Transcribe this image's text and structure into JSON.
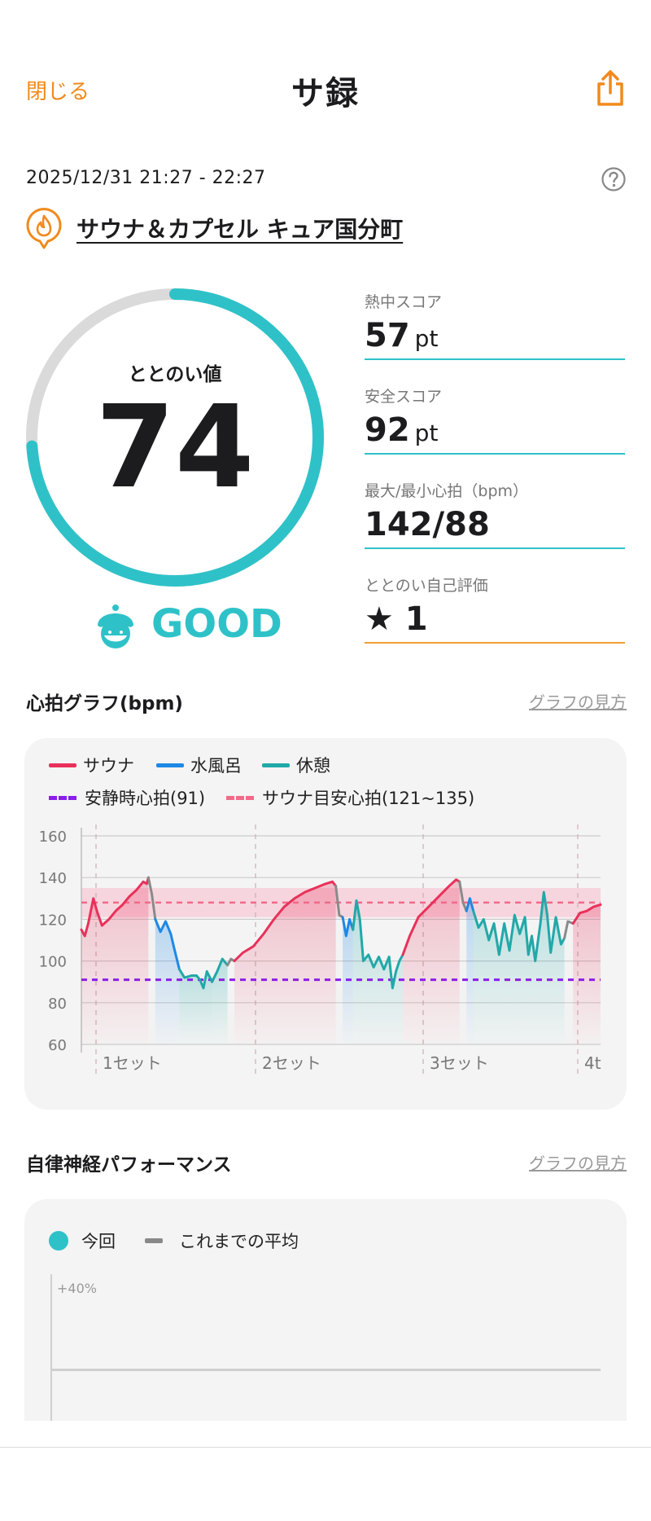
{
  "header": {
    "close_label": "閉じる",
    "title": "サ録",
    "share_icon": "share-icon"
  },
  "session": {
    "datetime": "2025/12/31 21:27 - 22:27",
    "location": "サウナ＆カプセル キュア国分町"
  },
  "gauge": {
    "label": "ととのい値",
    "value": "74",
    "max": 100,
    "rating": "GOOD"
  },
  "stats": [
    {
      "label": "熱中スコア",
      "value": "57",
      "unit": "pt"
    },
    {
      "label": "安全スコア",
      "value": "92",
      "unit": "pt"
    },
    {
      "label": "最大/最小心拍（bpm）",
      "value": "142/88",
      "unit": ""
    },
    {
      "label": "ととのい自己評価",
      "value": "★ 1",
      "unit": ""
    }
  ],
  "hr_section": {
    "title": "心拍グラフ(bpm)",
    "link": "グラフの見方"
  },
  "nerve_section": {
    "title": "自律神経パフォーマンス",
    "link": "グラフの見方",
    "legend_current": "今回",
    "legend_avg": "これまでの平均",
    "y_label": "+40%"
  },
  "colors": {
    "accent": "#f08a1c",
    "teal": "#2ec2c8",
    "sauna": "#e8315a",
    "cold": "#1e88e5",
    "rest": "#22a8a8",
    "resting_hr": "#8b1ee8",
    "target_hr": "#f06a8a"
  },
  "chart_data": {
    "type": "line",
    "ylim": [
      60,
      160
    ],
    "yticks": [
      60,
      80,
      100,
      120,
      140,
      160
    ],
    "legend": [
      {
        "name": "サウナ",
        "style": "solid",
        "color": "#e8315a"
      },
      {
        "name": "水風呂",
        "style": "solid",
        "color": "#1e88e5"
      },
      {
        "name": "休憩",
        "style": "solid",
        "color": "#22a8a8"
      },
      {
        "name": "安静時心拍(91)",
        "style": "dashed",
        "color": "#8b1ee8"
      },
      {
        "name": "サウナ目安心拍(121~135)",
        "style": "dashed",
        "color": "#f06a8a"
      }
    ],
    "resting_hr": 91,
    "target_band": [
      121,
      135
    ],
    "target_line": 128,
    "set_labels": [
      "1セット",
      "2セット",
      "3セット",
      "4t"
    ],
    "set_starts": [
      0,
      3.75,
      7.7,
      11.35
    ],
    "x_max": 12.1,
    "segments": [
      {
        "phase": "sauna",
        "points": [
          [
            0,
            115
          ],
          [
            0.1,
            112
          ],
          [
            0.2,
            118
          ],
          [
            0.35,
            130
          ],
          [
            0.45,
            124
          ],
          [
            0.6,
            117
          ],
          [
            0.8,
            120
          ],
          [
            1.0,
            124
          ],
          [
            1.2,
            127
          ],
          [
            1.4,
            131
          ],
          [
            1.6,
            134
          ],
          [
            1.8,
            138
          ],
          [
            1.9,
            137
          ],
          [
            1.95,
            140
          ]
        ]
      },
      {
        "phase": "transition",
        "points": [
          [
            1.95,
            140
          ],
          [
            2.05,
            132
          ],
          [
            2.15,
            120
          ]
        ]
      },
      {
        "phase": "cold",
        "points": [
          [
            2.15,
            120
          ],
          [
            2.3,
            114
          ],
          [
            2.45,
            119
          ],
          [
            2.6,
            113
          ],
          [
            2.7,
            106
          ],
          [
            2.85,
            96
          ]
        ]
      },
      {
        "phase": "rest",
        "points": [
          [
            2.85,
            96
          ],
          [
            3.0,
            92
          ],
          [
            3.2,
            93
          ],
          [
            3.35,
            93
          ],
          [
            3.45,
            91
          ],
          [
            3.55,
            87
          ],
          [
            3.65,
            95
          ],
          [
            3.8,
            90
          ]
        ]
      },
      {
        "phase": "rest",
        "points": [
          [
            3.8,
            90
          ],
          [
            3.95,
            95
          ],
          [
            4.1,
            101
          ],
          [
            4.25,
            98
          ]
        ]
      },
      {
        "phase": "transition",
        "points": [
          [
            4.25,
            98
          ],
          [
            4.35,
            101
          ],
          [
            4.45,
            100
          ]
        ]
      },
      {
        "phase": "sauna",
        "points": [
          [
            4.45,
            100
          ],
          [
            4.7,
            104
          ],
          [
            5.0,
            107
          ],
          [
            5.3,
            113
          ],
          [
            5.6,
            120
          ],
          [
            5.9,
            126
          ],
          [
            6.2,
            130
          ],
          [
            6.5,
            133
          ],
          [
            6.8,
            135
          ],
          [
            7.1,
            137
          ],
          [
            7.3,
            138
          ],
          [
            7.4,
            136
          ]
        ]
      },
      {
        "phase": "transition",
        "points": [
          [
            7.4,
            136
          ],
          [
            7.5,
            122
          ],
          [
            7.6,
            121
          ]
        ]
      },
      {
        "phase": "cold",
        "points": [
          [
            7.6,
            121
          ],
          [
            7.7,
            112
          ],
          [
            7.8,
            120
          ],
          [
            7.9,
            115
          ]
        ]
      },
      {
        "phase": "rest",
        "points": [
          [
            7.9,
            115
          ],
          [
            8.0,
            129
          ],
          [
            8.1,
            120
          ],
          [
            8.2,
            100
          ],
          [
            8.35,
            103
          ],
          [
            8.5,
            97
          ],
          [
            8.65,
            102
          ],
          [
            8.8,
            96
          ],
          [
            8.95,
            102
          ],
          [
            9.05,
            87
          ],
          [
            9.15,
            95
          ],
          [
            9.25,
            100
          ],
          [
            9.35,
            103
          ]
        ]
      },
      {
        "phase": "sauna",
        "points": [
          [
            9.35,
            103
          ],
          [
            9.55,
            112
          ],
          [
            9.8,
            121
          ],
          [
            10.1,
            126
          ],
          [
            10.4,
            131
          ],
          [
            10.7,
            136
          ],
          [
            10.9,
            139
          ],
          [
            11.0,
            138
          ]
        ]
      },
      {
        "phase": "transition",
        "points": [
          [
            11.0,
            138
          ],
          [
            11.1,
            128
          ],
          [
            11.2,
            124
          ]
        ]
      },
      {
        "phase": "cold",
        "points": [
          [
            11.2,
            124
          ],
          [
            11.3,
            130
          ],
          [
            11.4,
            124
          ]
        ]
      },
      {
        "phase": "rest",
        "points": [
          [
            11.4,
            124
          ],
          [
            11.55,
            116
          ],
          [
            11.7,
            120
          ],
          [
            11.85,
            110
          ],
          [
            12.0,
            118
          ],
          [
            12.15,
            103
          ],
          [
            12.3,
            118
          ],
          [
            12.45,
            105
          ],
          [
            12.6,
            122
          ],
          [
            12.75,
            113
          ],
          [
            12.9,
            121
          ],
          [
            13.0,
            103
          ],
          [
            13.1,
            112
          ],
          [
            13.2,
            100
          ],
          [
            13.35,
            118
          ],
          [
            13.45,
            133
          ],
          [
            13.55,
            122
          ],
          [
            13.65,
            104
          ],
          [
            13.8,
            121
          ],
          [
            13.95,
            108
          ],
          [
            14.05,
            111
          ]
        ]
      },
      {
        "phase": "transition",
        "points": [
          [
            14.05,
            111
          ],
          [
            14.15,
            119
          ],
          [
            14.3,
            118
          ]
        ]
      },
      {
        "phase": "sauna",
        "points": [
          [
            14.3,
            118
          ],
          [
            14.5,
            123
          ],
          [
            14.7,
            124
          ],
          [
            14.9,
            126
          ],
          [
            15.1,
            127
          ]
        ]
      }
    ]
  }
}
